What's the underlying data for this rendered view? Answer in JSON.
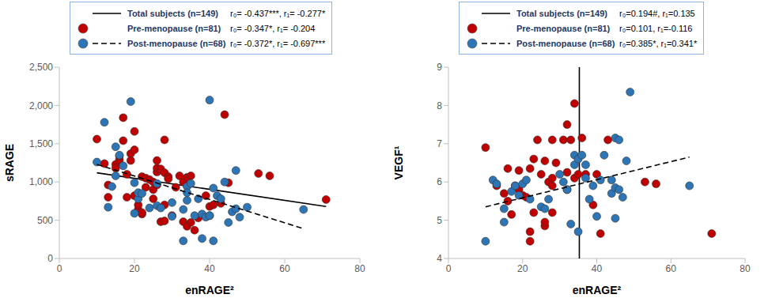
{
  "chart_data": [
    {
      "type": "scatter",
      "x_label": "enRAGE²",
      "y_label": "sRAGE",
      "grid": false,
      "xlim": [
        0,
        80
      ],
      "xticks": [
        0,
        20,
        40,
        60,
        80
      ],
      "ylim": [
        0,
        2500
      ],
      "yticks": [
        0,
        500,
        {
          "value": 1000,
          "label": "1,000"
        },
        {
          "value": 1500,
          "label": "1,500"
        },
        {
          "value": 2000,
          "label": "2,000"
        },
        {
          "value": 2500,
          "label": "2,500"
        }
      ],
      "series": [
        {
          "name": "Total subjects (n=149)",
          "stats": "r₀= -0.437***,   r₁= -0.277*",
          "type": "line",
          "line_style": "solid",
          "color": "#000000",
          "x": [
            10,
            71
          ],
          "values": [
            1120,
            680
          ]
        },
        {
          "name": "Pre-menopause (n=81)",
          "stats": "r₀= -0.347*,   r₁= -0.204",
          "type": "scatter",
          "marker": "circle",
          "color": "#c00000",
          "x": [
            10,
            12,
            13,
            13,
            15,
            15,
            16,
            16,
            17,
            17,
            18,
            18,
            19,
            19,
            20,
            20,
            20,
            21,
            21,
            22,
            22,
            22,
            23,
            23,
            24,
            25,
            25,
            25,
            26,
            26,
            26,
            26,
            27,
            27,
            28,
            28,
            28,
            28,
            29,
            29,
            30,
            31,
            32,
            33,
            33,
            34,
            34,
            35,
            35,
            36,
            37,
            39,
            40,
            40,
            41,
            43,
            44,
            45,
            53,
            56,
            71
          ],
          "values": [
            1560,
            1240,
            960,
            800,
            1230,
            1180,
            1290,
            1340,
            1540,
            1840,
            1100,
            800,
            1370,
            1280,
            1660,
            1420,
            820,
            640,
            700,
            580,
            600,
            1070,
            930,
            1050,
            1030,
            900,
            1000,
            780,
            1280,
            1130,
            1180,
            960,
            480,
            1170,
            1550,
            1120,
            700,
            490,
            1070,
            1040,
            560,
            930,
            1080,
            480,
            1000,
            420,
            1060,
            1080,
            470,
            370,
            530,
            820,
            680,
            560,
            700,
            720,
            1880,
            990,
            1110,
            1080,
            770
          ]
        },
        {
          "name": "Post-menopause (n=68)",
          "stats": "r₀= -0.372*,   r₁= -0.697***",
          "type": "scatter",
          "marker": "circle",
          "color": "#2e75b6",
          "line_style": "dashed",
          "x": [
            10,
            12,
            13,
            14,
            15,
            15,
            16,
            17,
            19,
            20,
            20,
            21,
            21,
            22,
            24,
            26,
            26,
            27,
            30,
            30,
            33,
            33,
            34,
            34,
            34,
            35,
            36,
            37,
            38,
            38,
            39,
            40,
            40,
            41,
            41,
            42,
            43,
            44,
            45,
            46,
            47,
            47,
            48,
            50,
            65
          ],
          "values": [
            1260,
            1780,
            670,
            940,
            1460,
            1080,
            1350,
            1210,
            2050,
            590,
            990,
            780,
            860,
            850,
            660,
            980,
            690,
            660,
            550,
            730,
            640,
            230,
            940,
            860,
            760,
            980,
            560,
            780,
            580,
            260,
            540,
            2070,
            560,
            920,
            230,
            820,
            780,
            1000,
            470,
            610,
            1150,
            650,
            540,
            670,
            640
          ],
          "fit": {
            "color": "#000000",
            "x": [
              10,
              65
            ],
            "values": [
              1230,
              390
            ]
          }
        }
      ]
    },
    {
      "type": "scatter",
      "x_label": "enRAGE²",
      "y_label": "VEGF¹",
      "grid": false,
      "xlim": [
        0,
        80
      ],
      "xticks": [
        0,
        20,
        40,
        60,
        80
      ],
      "ylim": [
        4,
        9
      ],
      "yticks": [
        4,
        5,
        6,
        7,
        8,
        9
      ],
      "series": [
        {
          "name": "Total subjects (n=149)",
          "stats": "r₀=0.194#,   r₁=0.135",
          "type": "line",
          "line_style": "solid",
          "color": "#000000",
          "x": [
            35.3,
            35.3
          ],
          "values": [
            4,
            9
          ]
        },
        {
          "name": "Pre-menopause (n=81)",
          "stats": "r₀=0.101,   r₁=-0.116",
          "type": "scatter",
          "marker": "circle",
          "color": "#c00000",
          "x": [
            10,
            13,
            15,
            16,
            16,
            17,
            18,
            19,
            19,
            20,
            21,
            22,
            22,
            22,
            23,
            23,
            24,
            25,
            26,
            26,
            26,
            27,
            28,
            28,
            28,
            28,
            29,
            31,
            32,
            32,
            32,
            33,
            34,
            34,
            35,
            36,
            37,
            39,
            40,
            41,
            43,
            53,
            56,
            71
          ],
          "values": [
            6.9,
            5.9,
            5.7,
            6.35,
            5.5,
            5.15,
            5.9,
            6.3,
            5.8,
            5.65,
            5.6,
            4.7,
            4.45,
            6.35,
            6.6,
            5.2,
            7.1,
            6.2,
            6.55,
            4.85,
            4.95,
            6.0,
            6.1,
            5.9,
            5.2,
            7.1,
            6.5,
            7.1,
            7.5,
            5.8,
            6.25,
            7.1,
            8.05,
            6.1,
            6.2,
            7.15,
            6.2,
            5.4,
            6.2,
            4.65,
            7.1,
            6.0,
            5.95,
            4.65
          ]
        },
        {
          "name": "Post-menopause (n=68)",
          "stats": "r₀=0.385*,   r₁=0.341*",
          "type": "scatter",
          "marker": "circle",
          "color": "#2e75b6",
          "line_style": "dashed",
          "x": [
            10,
            12,
            13,
            15,
            15,
            17,
            18,
            19,
            20,
            21,
            22,
            25,
            26,
            27,
            30,
            31,
            32,
            33,
            34,
            34,
            35,
            35,
            36,
            37,
            37,
            38,
            39,
            40,
            41,
            42,
            44,
            44,
            45,
            45,
            45,
            46,
            46,
            47,
            48,
            49,
            65
          ],
          "values": [
            4.45,
            6.05,
            5.95,
            4.95,
            5.3,
            5.75,
            5.9,
            5.65,
            5.95,
            6.05,
            5.55,
            5.35,
            5.3,
            5.55,
            6.2,
            6.0,
            5.8,
            4.9,
            6.45,
            6.7,
            4.7,
            6.6,
            6.7,
            6.45,
            6.1,
            5.55,
            5.9,
            5.1,
            6.05,
            6.7,
            6.05,
            5.7,
            5.85,
            5.05,
            7.15,
            5.8,
            7.1,
            5.6,
            6.55,
            8.35,
            5.9
          ],
          "fit": {
            "color": "#000000",
            "x": [
              10,
              65
            ],
            "values": [
              5.35,
              6.65
            ]
          }
        }
      ]
    }
  ]
}
